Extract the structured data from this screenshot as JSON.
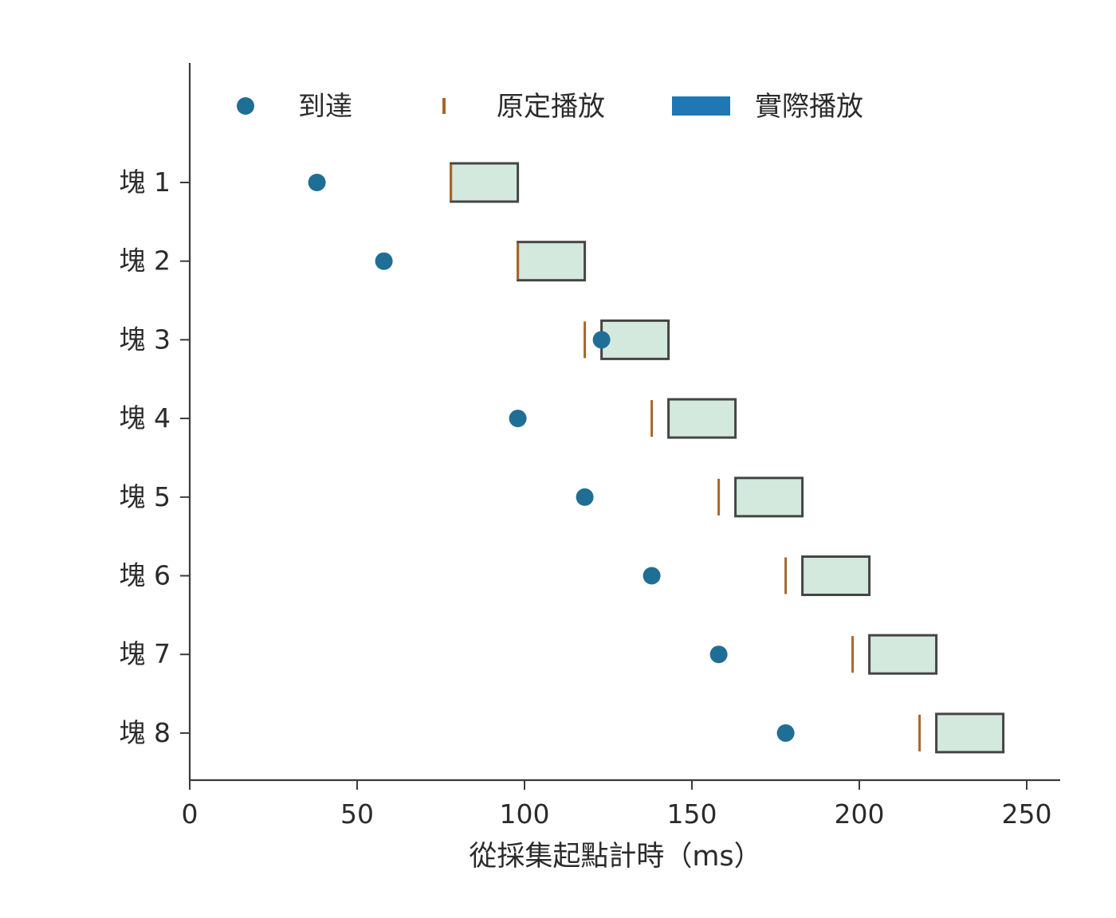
{
  "chart_data": {
    "type": "timeline",
    "title": "",
    "xlabel": "從採集起點計時（ms）",
    "ylabel": "",
    "xlim": [
      0,
      260
    ],
    "xticks": [
      0,
      50,
      100,
      150,
      200,
      250
    ],
    "grid": false,
    "legend_position": "top",
    "legend": {
      "arrival": "到達",
      "scheduled": "原定播放",
      "actual": "實際播放"
    },
    "colors": {
      "arrival": "#1f6e95",
      "scheduled": "#a8662a",
      "actual_fill": "#d3e9dd",
      "actual_stroke": "#454545",
      "legend_actual": "#1f77b4"
    },
    "categories": [
      "塊 1",
      "塊 2",
      "塊 3",
      "塊 4",
      "塊 5",
      "塊 6",
      "塊 7",
      "塊 8"
    ],
    "series": [
      {
        "name": "到達",
        "key": "arrival",
        "values": [
          38,
          58,
          123,
          98,
          118,
          138,
          158,
          178
        ]
      },
      {
        "name": "原定播放",
        "key": "scheduled",
        "values": [
          78,
          98,
          118,
          138,
          158,
          178,
          198,
          218
        ]
      },
      {
        "name": "實際播放",
        "key": "actual",
        "start": [
          78,
          98,
          123,
          143,
          163,
          183,
          203,
          223
        ],
        "end": [
          98,
          118,
          143,
          163,
          183,
          203,
          223,
          243
        ]
      }
    ]
  }
}
